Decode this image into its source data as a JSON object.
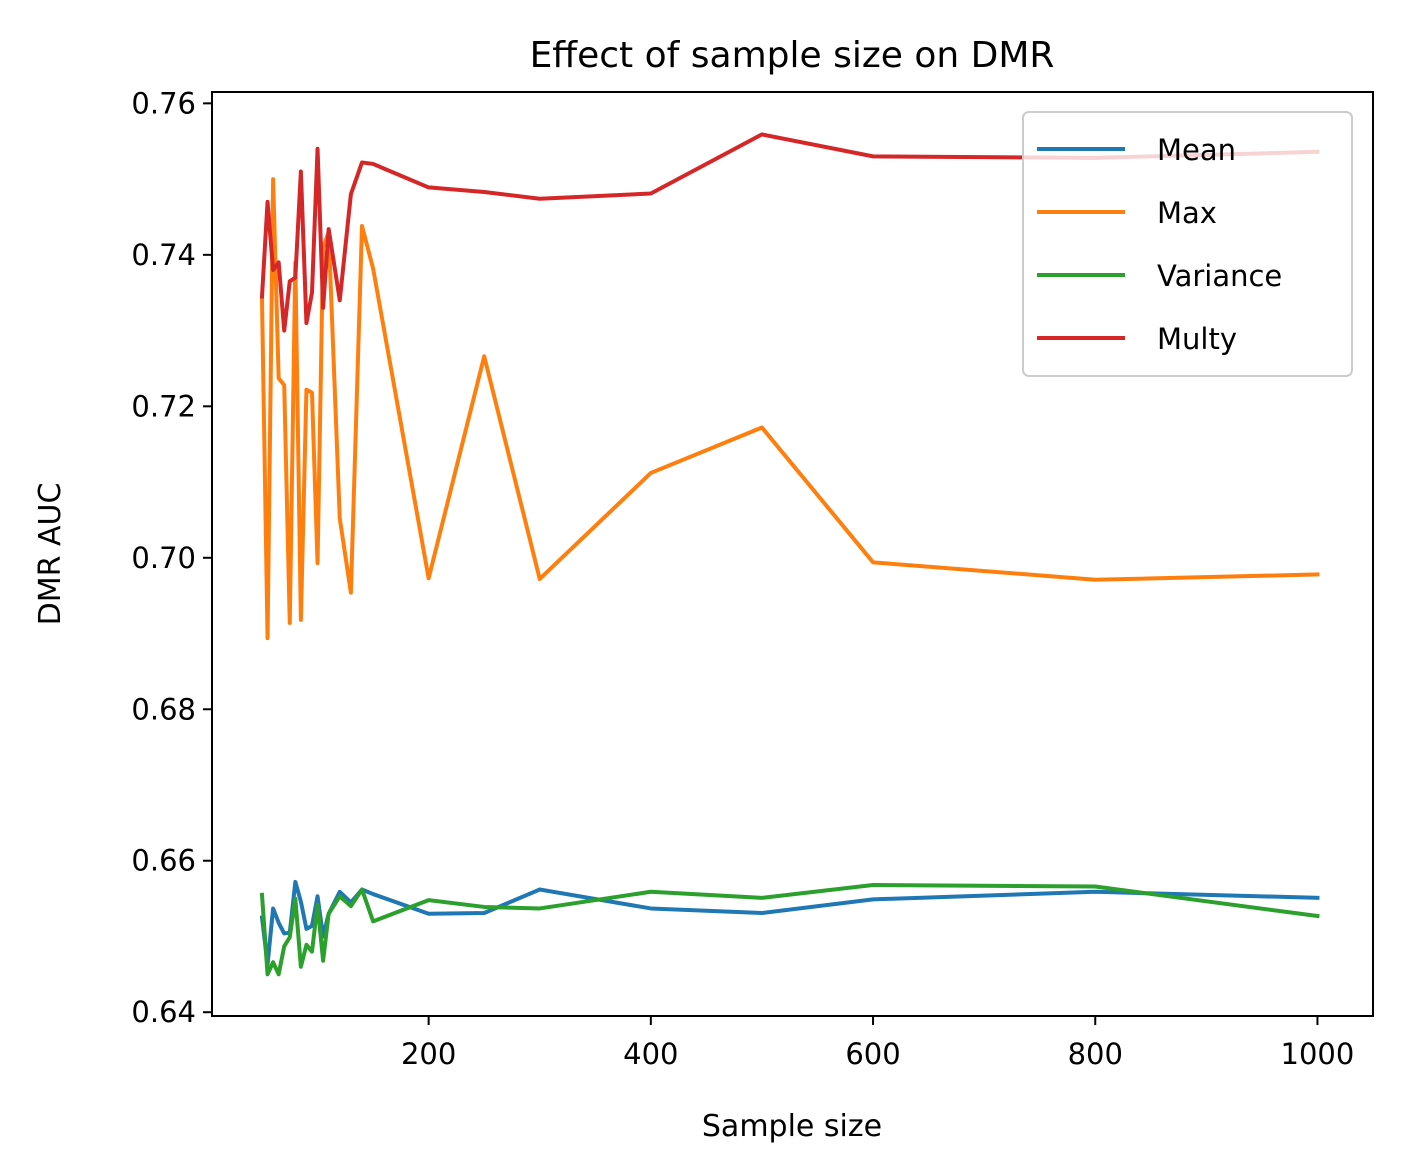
{
  "chart_data": {
    "type": "line",
    "title": "Effect of sample size on DMR",
    "xlabel": "Sample size",
    "ylabel": "DMR AUC",
    "xlim": [
      5,
      1050
    ],
    "ylim": [
      0.6395,
      0.7615
    ],
    "xticks": [
      200,
      400,
      600,
      800,
      1000
    ],
    "yticks": [
      0.64,
      0.66,
      0.68,
      0.7,
      0.72,
      0.74,
      0.76
    ],
    "xtick_labels": [
      "200",
      "400",
      "600",
      "800",
      "1000"
    ],
    "ytick_labels": [
      "0.64",
      "0.66",
      "0.68",
      "0.70",
      "0.72",
      "0.74",
      "0.76"
    ],
    "grid": false,
    "legend_position": "top-right",
    "x": [
      50,
      55,
      60,
      65,
      70,
      75,
      80,
      85,
      90,
      95,
      100,
      105,
      110,
      120,
      130,
      140,
      150,
      200,
      250,
      300,
      400,
      500,
      600,
      800,
      1000
    ],
    "series": [
      {
        "name": "Mean",
        "color": "#1f77b4",
        "values": [
          0.6525,
          0.6463,
          0.6537,
          0.6518,
          0.6504,
          0.6505,
          0.6572,
          0.6546,
          0.651,
          0.6514,
          0.6553,
          0.65,
          0.653,
          0.6559,
          0.6545,
          0.6562,
          0.6556,
          0.653,
          0.6531,
          0.6562,
          0.6537,
          0.6531,
          0.6549,
          0.6559,
          0.6551
        ]
      },
      {
        "name": "Max",
        "color": "#ff7f0e",
        "values": [
          0.7342,
          0.6894,
          0.75,
          0.7237,
          0.7228,
          0.6914,
          0.739,
          0.6918,
          0.7222,
          0.7218,
          0.6993,
          0.741,
          0.743,
          0.7052,
          0.6954,
          0.7438,
          0.7382,
          0.6973,
          0.7266,
          0.6972,
          0.7112,
          0.7172,
          0.6994,
          0.6971,
          0.6978
        ]
      },
      {
        "name": "Variance",
        "color": "#2ca02c",
        "values": [
          0.6555,
          0.645,
          0.6466,
          0.645,
          0.6487,
          0.6499,
          0.655,
          0.646,
          0.6489,
          0.648,
          0.6542,
          0.6468,
          0.653,
          0.6553,
          0.654,
          0.6562,
          0.652,
          0.6548,
          0.6539,
          0.6537,
          0.6559,
          0.6551,
          0.6568,
          0.6566,
          0.6527
        ]
      },
      {
        "name": "Multy",
        "color": "#d62728",
        "values": [
          0.7345,
          0.747,
          0.738,
          0.739,
          0.73,
          0.7365,
          0.737,
          0.751,
          0.731,
          0.735,
          0.754,
          0.733,
          0.7434,
          0.734,
          0.748,
          0.7522,
          0.752,
          0.7489,
          0.7483,
          0.7474,
          0.7481,
          0.7559,
          0.753,
          0.7528,
          0.7536
        ]
      }
    ]
  }
}
